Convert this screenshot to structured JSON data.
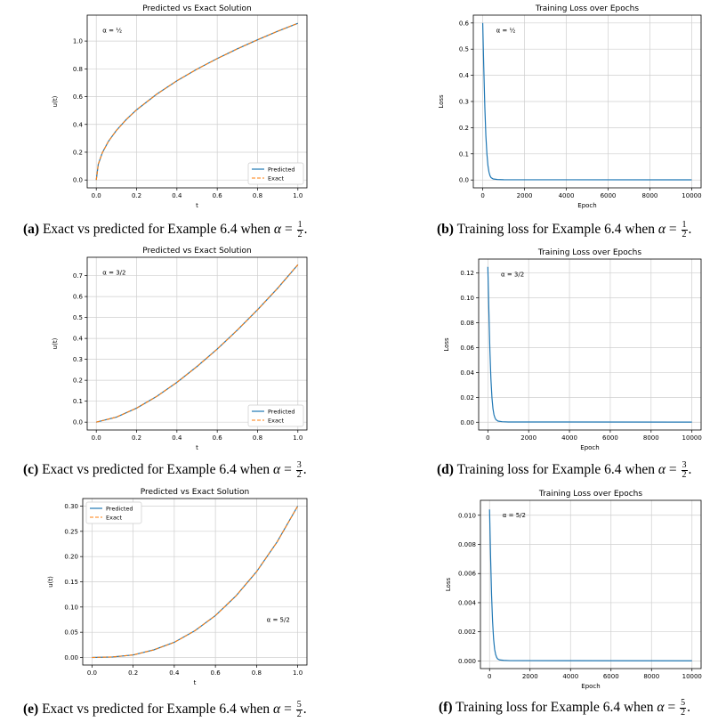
{
  "colors": {
    "predicted": "#1f77b4",
    "exact": "#ff7f0e",
    "grid": "#cfcfcf",
    "axis": "#000000"
  },
  "charts": [
    {
      "title": "Predicted vs Exact Solution",
      "xlabel": "t",
      "ylabel": "u(t)",
      "xticks": [
        "0.0",
        "0.2",
        "0.4",
        "0.6",
        "0.8",
        "1.0"
      ],
      "yticks": [
        "0.0",
        "0.2",
        "0.4",
        "0.6",
        "0.8",
        "1.0"
      ],
      "alpha_label": "α = ½",
      "legend": [
        "Predicted",
        "Exact"
      ]
    },
    {
      "title": "Training Loss over Epochs",
      "xlabel": "Epoch",
      "ylabel": "Loss",
      "xticks": [
        "0",
        "2000",
        "4000",
        "6000",
        "8000",
        "10000"
      ],
      "yticks": [
        "0.0",
        "0.1",
        "0.2",
        "0.3",
        "0.4",
        "0.5",
        "0.6"
      ],
      "alpha_label": "α = ½"
    },
    {
      "title": "Predicted vs Exact Solution",
      "xlabel": "t",
      "ylabel": "u(t)",
      "xticks": [
        "0.0",
        "0.2",
        "0.4",
        "0.6",
        "0.8",
        "1.0"
      ],
      "yticks": [
        "0.0",
        "0.1",
        "0.2",
        "0.3",
        "0.4",
        "0.5",
        "0.6",
        "0.7"
      ],
      "alpha_label": "α = 3/2",
      "legend": [
        "Predicted",
        "Exact"
      ]
    },
    {
      "title": "Training Loss over Epochs",
      "xlabel": "Epoch",
      "ylabel": "Loss",
      "xticks": [
        "0",
        "2000",
        "4000",
        "6000",
        "8000",
        "10000"
      ],
      "yticks": [
        "0.00",
        "0.02",
        "0.04",
        "0.06",
        "0.08",
        "0.10",
        "0.12"
      ],
      "alpha_label": "α = 3/2"
    },
    {
      "title": "Predicted vs Exact Solution",
      "xlabel": "t",
      "ylabel": "u(t)",
      "xticks": [
        "0.0",
        "0.2",
        "0.4",
        "0.6",
        "0.8",
        "1.0"
      ],
      "yticks": [
        "0.00",
        "0.05",
        "0.10",
        "0.15",
        "0.20",
        "0.25",
        "0.30"
      ],
      "alpha_label": "α = 5/2",
      "legend": [
        "Predicted",
        "Exact"
      ]
    },
    {
      "title": "Training Loss over Epochs",
      "xlabel": "Epoch",
      "ylabel": "Loss",
      "xticks": [
        "0",
        "2000",
        "4000",
        "6000",
        "8000",
        "10000"
      ],
      "yticks": [
        "0.000",
        "0.002",
        "0.004",
        "0.006",
        "0.008",
        "0.010"
      ],
      "alpha_label": "α = 5/2"
    }
  ],
  "captions": [
    {
      "label": "(a)",
      "text": "Exact vs predicted for Example 6.4 when",
      "math": "α",
      "eq": " = ",
      "num": "1",
      "den": "2",
      "end": "."
    },
    {
      "label": "(b)",
      "text": "Training loss for Example 6.4 when",
      "math": "α",
      "eq": " = ",
      "num": "1",
      "den": "2",
      "end": "."
    },
    {
      "label": "(c)",
      "text": "Exact vs predicted for Example 6.4 when",
      "math": "α",
      "eq": " = ",
      "num": "3",
      "den": "2",
      "end": "."
    },
    {
      "label": "(d)",
      "text": "Training loss for Example 6.4 when",
      "math": "α",
      "eq": " = ",
      "num": "3",
      "den": "2",
      "end": "."
    },
    {
      "label": "(e)",
      "text": "Exact vs predicted for Example 6.4 when",
      "math": "α",
      "eq": " = ",
      "num": "5",
      "den": "2",
      "end": "."
    },
    {
      "label": "(f)",
      "text": "Training loss for Example 6.4 when",
      "math": "α",
      "eq": " = ",
      "num": "5",
      "den": "2",
      "end": "."
    }
  ],
  "chart_data": [
    {
      "type": "line",
      "title": "Predicted vs Exact Solution",
      "xlabel": "t",
      "ylabel": "u(t)",
      "xlim": [
        0,
        1
      ],
      "ylim": [
        0,
        1.13
      ],
      "grid": true,
      "legend_position": "bottom-right",
      "x": [
        0,
        0.01,
        0.03,
        0.06,
        0.1,
        0.15,
        0.2,
        0.3,
        0.4,
        0.5,
        0.6,
        0.7,
        0.8,
        0.9,
        1.0
      ],
      "series": [
        {
          "name": "Predicted",
          "style": "solid",
          "values": [
            0,
            0.113,
            0.196,
            0.277,
            0.357,
            0.437,
            0.505,
            0.618,
            0.714,
            0.798,
            0.874,
            0.944,
            1.009,
            1.071,
            1.128
          ]
        },
        {
          "name": "Exact",
          "style": "dashed",
          "values": [
            0,
            0.113,
            0.196,
            0.277,
            0.357,
            0.437,
            0.505,
            0.618,
            0.714,
            0.798,
            0.874,
            0.944,
            1.009,
            1.071,
            1.128
          ]
        }
      ]
    },
    {
      "type": "line",
      "title": "Training Loss over Epochs",
      "xlabel": "Epoch",
      "ylabel": "Loss",
      "xlim": [
        0,
        10000
      ],
      "ylim": [
        0,
        0.6
      ],
      "grid": true,
      "x": [
        0,
        50,
        100,
        150,
        200,
        250,
        300,
        350,
        400,
        500,
        700,
        1000,
        10000
      ],
      "series": [
        {
          "values": [
            0.6,
            0.43,
            0.28,
            0.17,
            0.1,
            0.055,
            0.03,
            0.016,
            0.009,
            0.004,
            0.002,
            0.001,
            0.0005
          ]
        }
      ]
    },
    {
      "type": "line",
      "title": "Predicted vs Exact Solution",
      "xlabel": "t",
      "ylabel": "u(t)",
      "xlim": [
        0,
        1
      ],
      "ylim": [
        0,
        0.75
      ],
      "grid": true,
      "legend_position": "bottom-right",
      "x": [
        0,
        0.1,
        0.2,
        0.3,
        0.4,
        0.5,
        0.6,
        0.7,
        0.8,
        0.9,
        1.0
      ],
      "series": [
        {
          "name": "Predicted",
          "style": "solid",
          "values": [
            0,
            0.024,
            0.067,
            0.123,
            0.19,
            0.266,
            0.349,
            0.44,
            0.537,
            0.64,
            0.752
          ]
        },
        {
          "name": "Exact",
          "style": "dashed",
          "values": [
            0,
            0.024,
            0.067,
            0.123,
            0.19,
            0.266,
            0.349,
            0.44,
            0.537,
            0.64,
            0.752
          ]
        }
      ]
    },
    {
      "type": "line",
      "title": "Training Loss over Epochs",
      "xlabel": "Epoch",
      "ylabel": "Loss",
      "xlim": [
        0,
        10000
      ],
      "ylim": [
        0,
        0.125
      ],
      "grid": true,
      "x": [
        0,
        50,
        100,
        150,
        200,
        250,
        300,
        350,
        400,
        500,
        700,
        1000,
        10000
      ],
      "series": [
        {
          "values": [
            0.125,
            0.09,
            0.058,
            0.035,
            0.02,
            0.011,
            0.006,
            0.0035,
            0.002,
            0.0009,
            0.0004,
            0.0002,
            0.0001
          ]
        }
      ]
    },
    {
      "type": "line",
      "title": "Predicted vs Exact Solution",
      "xlabel": "t",
      "ylabel": "u(t)",
      "xlim": [
        0,
        1
      ],
      "ylim": [
        0,
        0.3
      ],
      "grid": true,
      "legend_position": "top-left",
      "x": [
        0,
        0.1,
        0.2,
        0.3,
        0.4,
        0.5,
        0.6,
        0.7,
        0.8,
        0.9,
        1.0
      ],
      "series": [
        {
          "name": "Predicted",
          "style": "solid",
          "values": [
            0,
            0.001,
            0.005,
            0.015,
            0.03,
            0.053,
            0.083,
            0.122,
            0.17,
            0.229,
            0.3
          ]
        },
        {
          "name": "Exact",
          "style": "dashed",
          "values": [
            0,
            0.001,
            0.005,
            0.015,
            0.03,
            0.053,
            0.083,
            0.122,
            0.17,
            0.229,
            0.3
          ]
        }
      ]
    },
    {
      "type": "line",
      "title": "Training Loss over Epochs",
      "xlabel": "Epoch",
      "ylabel": "Loss",
      "xlim": [
        0,
        10000
      ],
      "ylim": [
        0,
        0.0105
      ],
      "grid": true,
      "x": [
        0,
        50,
        100,
        150,
        200,
        250,
        300,
        350,
        400,
        500,
        700,
        1000,
        10000
      ],
      "series": [
        {
          "values": [
            0.0104,
            0.0072,
            0.0045,
            0.0027,
            0.0015,
            0.0008,
            0.00045,
            0.00025,
            0.00014,
            7e-05,
            4e-05,
            2e-05,
            1e-05
          ]
        }
      ]
    }
  ]
}
